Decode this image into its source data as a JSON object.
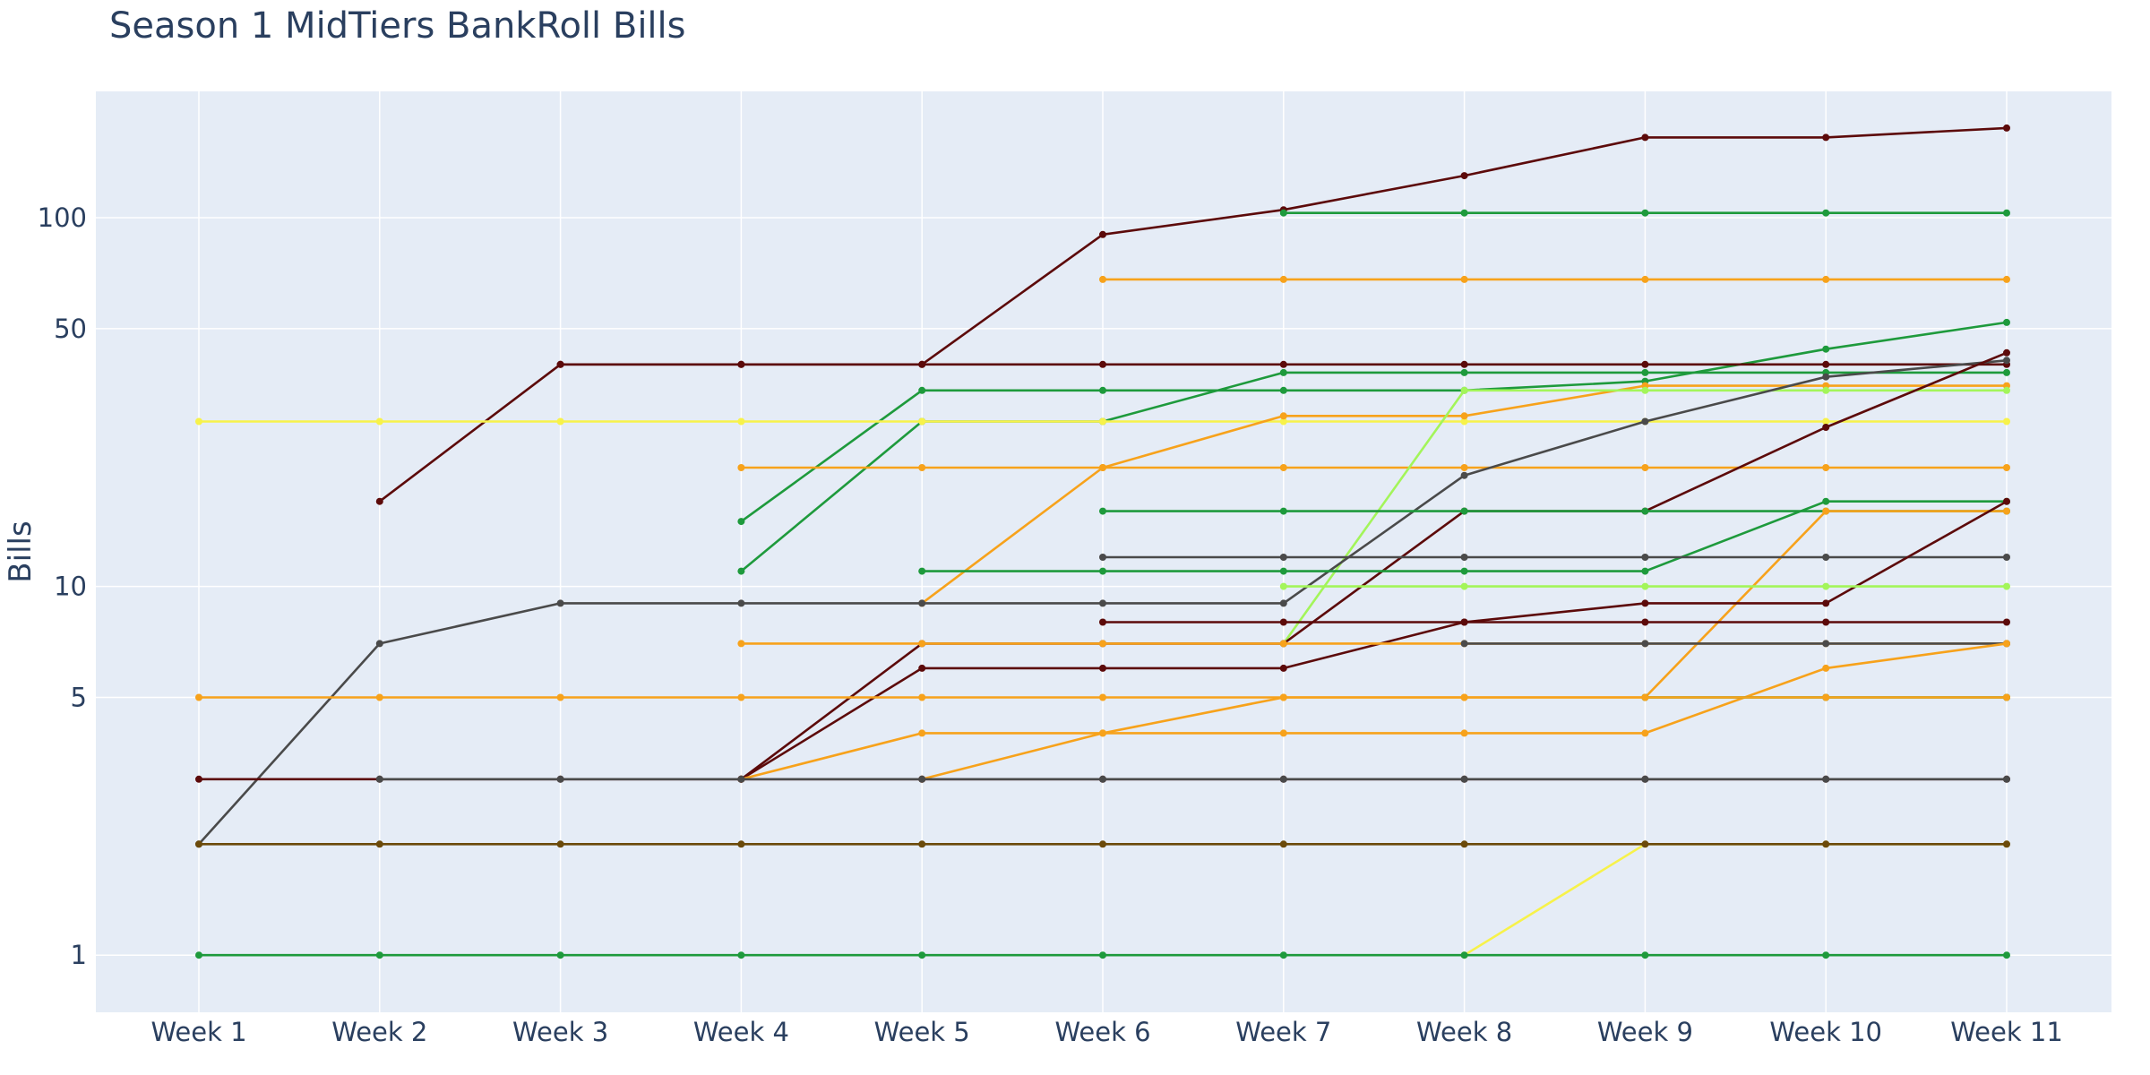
{
  "chart_data": {
    "type": "line",
    "title": "Season 1 MidTiers BankRoll Bills",
    "xlabel": "",
    "ylabel": "Bills",
    "y_scale": "log",
    "ylim": [
      0.7,
      220
    ],
    "y_ticks": [
      1,
      5,
      10,
      50,
      100
    ],
    "grid": true,
    "legend": "none",
    "categories": [
      "Week 1",
      "Week 2",
      "Week 3",
      "Week 4",
      "Week 5",
      "Week 6",
      "Week 7",
      "Week 8",
      "Week 9",
      "Week 10",
      "Week 11"
    ],
    "series": [
      {
        "color": "#5c0a0a",
        "values": [
          null,
          null,
          40,
          40,
          40,
          90,
          105,
          130,
          165,
          165,
          175
        ]
      },
      {
        "color": "#1e9a3c",
        "values": [
          null,
          null,
          null,
          null,
          null,
          null,
          103,
          103,
          103,
          103,
          103
        ]
      },
      {
        "color": "#f7a21b",
        "values": [
          null,
          null,
          null,
          null,
          null,
          68,
          68,
          68,
          68,
          68,
          68
        ]
      },
      {
        "color": "#1e9a3c",
        "values": [
          null,
          null,
          null,
          15,
          34,
          34,
          34,
          34,
          36,
          44,
          52
        ]
      },
      {
        "color": "#1e9a3c",
        "values": [
          null,
          null,
          null,
          11,
          28,
          28,
          38,
          38,
          38,
          38,
          38
        ]
      },
      {
        "color": "#5c0a0a",
        "values": [
          null,
          17,
          40,
          40,
          40,
          40,
          40,
          40,
          40,
          40,
          40
        ]
      },
      {
        "color": "#f7f24a",
        "values": [
          28,
          28,
          28,
          28,
          28,
          28,
          28,
          28,
          28,
          28,
          28
        ]
      },
      {
        "color": "#f7a21b",
        "values": [
          null,
          null,
          null,
          21,
          21,
          21,
          21,
          21,
          21,
          21,
          21
        ]
      },
      {
        "color": "#f7a21b",
        "values": [
          null,
          null,
          null,
          null,
          9,
          21,
          29,
          29,
          35,
          35,
          35
        ]
      },
      {
        "color": "#a3f55a",
        "values": [
          null,
          null,
          null,
          null,
          null,
          null,
          7,
          34,
          34,
          34,
          34
        ]
      },
      {
        "color": "#4a4a4a",
        "values": [
          2,
          7,
          9,
          9,
          9,
          9,
          9,
          20,
          28,
          37,
          41
        ]
      },
      {
        "color": "#5c0a0a",
        "values": [
          null,
          null,
          null,
          3,
          7,
          7,
          7,
          16,
          16,
          27,
          43
        ]
      },
      {
        "color": "#1e9a3c",
        "values": [
          null,
          null,
          null,
          null,
          null,
          16,
          16,
          16,
          16,
          16,
          16
        ]
      },
      {
        "color": "#1e9a3c",
        "values": [
          null,
          null,
          null,
          null,
          11,
          11,
          11,
          11,
          11,
          17,
          17
        ]
      },
      {
        "color": "#f7a21b",
        "values": [
          null,
          null,
          null,
          null,
          null,
          null,
          null,
          null,
          5,
          16,
          16
        ]
      },
      {
        "color": "#4a4a4a",
        "values": [
          null,
          null,
          null,
          null,
          null,
          12,
          12,
          12,
          12,
          12,
          12
        ]
      },
      {
        "color": "#5c0a0a",
        "values": [
          null,
          null,
          null,
          3,
          6,
          6,
          6,
          8,
          9,
          9,
          17
        ]
      },
      {
        "color": "#a3f55a",
        "values": [
          null,
          null,
          null,
          null,
          null,
          null,
          10,
          10,
          10,
          10,
          10
        ]
      },
      {
        "color": "#5c0a0a",
        "values": [
          null,
          null,
          null,
          null,
          null,
          8,
          8,
          8,
          8,
          8,
          8
        ]
      },
      {
        "color": "#f7a21b",
        "values": [
          null,
          null,
          null,
          7,
          7,
          7,
          7,
          7,
          7,
          7,
          7
        ]
      },
      {
        "color": "#4a4a4a",
        "values": [
          null,
          null,
          null,
          null,
          null,
          null,
          null,
          7,
          7,
          7,
          7
        ]
      },
      {
        "color": "#f7a21b",
        "values": [
          null,
          null,
          null,
          3,
          4,
          4,
          4,
          4,
          4,
          6,
          7
        ]
      },
      {
        "color": "#f7a21b",
        "values": [
          5,
          5,
          5,
          5,
          5,
          5,
          5,
          5,
          5,
          5,
          5
        ]
      },
      {
        "color": "#1e9a3c",
        "values": [
          null,
          null,
          null,
          null,
          null,
          null,
          null,
          null,
          5,
          5,
          5
        ]
      },
      {
        "color": "#f7a21b",
        "values": [
          null,
          null,
          null,
          null,
          3,
          4,
          5,
          5,
          5,
          5,
          5
        ]
      },
      {
        "color": "#5c0a0a",
        "values": [
          3,
          3,
          3,
          3,
          3,
          3,
          3,
          3,
          3,
          3,
          3
        ]
      },
      {
        "color": "#4a4a4a",
        "values": [
          null,
          3,
          3,
          3,
          3,
          3,
          3,
          3,
          3,
          3,
          3
        ]
      },
      {
        "color": "#f7f24a",
        "values": [
          null,
          null,
          null,
          null,
          null,
          null,
          null,
          1,
          2,
          2,
          2
        ]
      },
      {
        "color": "#6b4a0a",
        "values": [
          2,
          2,
          2,
          2,
          2,
          2,
          2,
          2,
          2,
          2,
          2
        ]
      },
      {
        "color": "#1e9a3c",
        "values": [
          1,
          1,
          1,
          1,
          1,
          1,
          1,
          1,
          1,
          1,
          1
        ]
      }
    ]
  }
}
